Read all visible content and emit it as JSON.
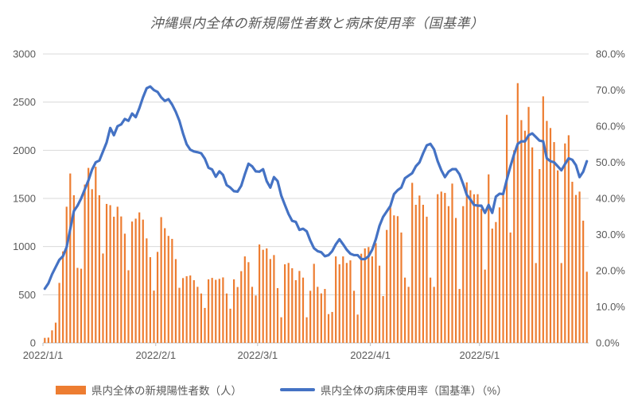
{
  "title": "沖縄県内全体の新規陽性者数と病床使用率（国基準）",
  "colors": {
    "bar": "#ED7D31",
    "line": "#4472C4",
    "grid": "#D9D9D9",
    "axis_line": "#BFBFBF",
    "axis_text": "#595959",
    "title_text": "#595959"
  },
  "chart_data": {
    "type": "combo_bar_line",
    "title": "沖縄県内全体の新規陽性者数と病床使用率（国基準）",
    "grid": true,
    "legend_position": "bottom",
    "x_unit": "day",
    "x_start": "2022/1/1",
    "x_end": "2022/5/30",
    "x_ticks": [
      {
        "label": "2022/1/1",
        "day_offset": 0
      },
      {
        "label": "2022/2/1",
        "day_offset": 31
      },
      {
        "label": "2022/3/1",
        "day_offset": 59
      },
      {
        "label": "2022/4/1",
        "day_offset": 90
      },
      {
        "label": "2022/5/1",
        "day_offset": 120
      }
    ],
    "left_axis": {
      "min": 0,
      "max": 3000,
      "step": 500,
      "tick_labels": [
        "0",
        "500",
        "1000",
        "1500",
        "2000",
        "2500",
        "3000"
      ]
    },
    "right_axis": {
      "min": 0,
      "max": 80,
      "step": 10,
      "tick_labels": [
        "0.0%",
        "10.0%",
        "20.0%",
        "30.0%",
        "40.0%",
        "50.0%",
        "60.0%",
        "70.0%",
        "80.0%"
      ]
    },
    "dates": [
      "2022/1/1",
      "2022/1/2",
      "2022/1/3",
      "2022/1/4",
      "2022/1/5",
      "2022/1/6",
      "2022/1/7",
      "2022/1/8",
      "2022/1/9",
      "2022/1/10",
      "2022/1/11",
      "2022/1/12",
      "2022/1/13",
      "2022/1/14",
      "2022/1/15",
      "2022/1/16",
      "2022/1/17",
      "2022/1/18",
      "2022/1/19",
      "2022/1/20",
      "2022/1/21",
      "2022/1/22",
      "2022/1/23",
      "2022/1/24",
      "2022/1/25",
      "2022/1/26",
      "2022/1/27",
      "2022/1/28",
      "2022/1/29",
      "2022/1/30",
      "2022/1/31",
      "2022/2/1",
      "2022/2/2",
      "2022/2/3",
      "2022/2/4",
      "2022/2/5",
      "2022/2/6",
      "2022/2/7",
      "2022/2/8",
      "2022/2/9",
      "2022/2/10",
      "2022/2/11",
      "2022/2/12",
      "2022/2/13",
      "2022/2/14",
      "2022/2/15",
      "2022/2/16",
      "2022/2/17",
      "2022/2/18",
      "2022/2/19",
      "2022/2/20",
      "2022/2/21",
      "2022/2/22",
      "2022/2/23",
      "2022/2/24",
      "2022/2/25",
      "2022/2/26",
      "2022/2/27",
      "2022/2/28",
      "2022/3/1",
      "2022/3/2",
      "2022/3/3",
      "2022/3/4",
      "2022/3/5",
      "2022/3/6",
      "2022/3/7",
      "2022/3/8",
      "2022/3/9",
      "2022/3/10",
      "2022/3/11",
      "2022/3/12",
      "2022/3/13",
      "2022/3/14",
      "2022/3/15",
      "2022/3/16",
      "2022/3/17",
      "2022/3/18",
      "2022/3/19",
      "2022/3/20",
      "2022/3/21",
      "2022/3/22",
      "2022/3/23",
      "2022/3/24",
      "2022/3/25",
      "2022/3/26",
      "2022/3/27",
      "2022/3/28",
      "2022/3/29",
      "2022/3/30",
      "2022/3/31",
      "2022/4/1",
      "2022/4/2",
      "2022/4/3",
      "2022/4/4",
      "2022/4/5",
      "2022/4/6",
      "2022/4/7",
      "2022/4/8",
      "2022/4/9",
      "2022/4/10",
      "2022/4/11",
      "2022/4/12",
      "2022/4/13",
      "2022/4/14",
      "2022/4/15",
      "2022/4/16",
      "2022/4/17",
      "2022/4/18",
      "2022/4/19",
      "2022/4/20",
      "2022/4/21",
      "2022/4/22",
      "2022/4/23",
      "2022/4/24",
      "2022/4/25",
      "2022/4/26",
      "2022/4/27",
      "2022/4/28",
      "2022/4/29",
      "2022/4/30",
      "2022/5/1",
      "2022/5/2",
      "2022/5/3",
      "2022/5/4",
      "2022/5/5",
      "2022/5/6",
      "2022/5/7",
      "2022/5/8",
      "2022/5/9",
      "2022/5/10",
      "2022/5/11",
      "2022/5/12",
      "2022/5/13",
      "2022/5/14",
      "2022/5/15",
      "2022/5/16",
      "2022/5/17",
      "2022/5/18",
      "2022/5/19",
      "2022/5/20",
      "2022/5/21",
      "2022/5/22",
      "2022/5/23",
      "2022/5/24",
      "2022/5/25",
      "2022/5/26",
      "2022/5/27",
      "2022/5/28",
      "2022/5/29",
      "2022/5/30"
    ],
    "series": [
      {
        "name": "県内全体の新規陽性者数（人）",
        "type": "bar",
        "axis": "left",
        "color": "#ED7D31",
        "values": [
          52,
          55,
          130,
          210,
          623,
          950,
          1414,
          1759,
          1533,
          779,
          770,
          1644,
          1817,
          1596,
          1829,
          1533,
          928,
          1443,
          1430,
          1310,
          1414,
          1313,
          1134,
          754,
          1260,
          1290,
          1355,
          1280,
          1085,
          890,
          543,
          945,
          1306,
          1191,
          1111,
          1080,
          870,
          572,
          673,
          692,
          700,
          651,
          582,
          513,
          363,
          660,
          675,
          655,
          665,
          680,
          513,
          355,
          660,
          580,
          745,
          898,
          838,
          582,
          492,
          1022,
          967,
          981,
          871,
          912,
          569,
          266,
          816,
          830,
          775,
          651,
          747,
          678,
          266,
          541,
          821,
          582,
          514,
          560,
          299,
          321,
          898,
          816,
          898,
          830,
          857,
          541,
          294,
          926,
          981,
          995,
          898,
          1036,
          802,
          486,
          1173,
          1407,
          1324,
          1316,
          1146,
          678,
          582,
          1662,
          1434,
          1530,
          1434,
          1310,
          678,
          582,
          1544,
          1571,
          1557,
          1420,
          1654,
          1297,
          560,
          1420,
          1667,
          1585,
          1543,
          1544,
          1393,
          761,
          1750,
          1187,
          1255,
          1407,
          1544,
          2368,
          1146,
          2000,
          2697,
          2313,
          2203,
          2450,
          2030,
          829,
          1805,
          2560,
          2305,
          2231,
          2085,
          1791,
          829,
          2071,
          2156,
          1673,
          1536,
          1571,
          1269,
          739
        ]
      },
      {
        "name": "県内全体の病床使用率（国基準）（%）",
        "type": "line",
        "axis": "right",
        "color": "#4472C4",
        "values": [
          15.0,
          16.5,
          19.0,
          21.0,
          23.0,
          24.0,
          26.5,
          31.5,
          36.5,
          38.0,
          40.0,
          42.5,
          45.0,
          48.0,
          50.0,
          50.5,
          53.0,
          55.5,
          59.5,
          57.5,
          60.0,
          60.5,
          62.0,
          61.5,
          63.5,
          62.5,
          65.0,
          68.0,
          70.5,
          71.0,
          70.0,
          69.5,
          68.0,
          67.0,
          67.5,
          66.0,
          64.0,
          61.5,
          58.0,
          55.0,
          53.5,
          53.0,
          52.8,
          52.5,
          51.0,
          48.5,
          48.0,
          46.0,
          47.5,
          46.5,
          43.7,
          43.0,
          42.0,
          41.9,
          43.5,
          46.7,
          49.6,
          48.9,
          47.5,
          47.4,
          48.1,
          44.8,
          43.0,
          45.9,
          44.8,
          40.8,
          38.2,
          35.7,
          33.8,
          33.5,
          31.3,
          31.6,
          30.9,
          28.3,
          26.2,
          25.4,
          25.1,
          24.0,
          24.3,
          25.4,
          27.3,
          28.7,
          27.3,
          25.8,
          24.7,
          24.3,
          24.3,
          23.2,
          23.2,
          24.0,
          25.8,
          28.7,
          32.4,
          34.9,
          36.4,
          37.9,
          41.2,
          42.3,
          43.0,
          45.6,
          46.3,
          47.0,
          48.9,
          50.0,
          52.5,
          54.7,
          55.1,
          53.6,
          50.3,
          47.8,
          45.9,
          47.4,
          48.1,
          48.1,
          46.7,
          44.0,
          41.0,
          39.7,
          38.2,
          38.0,
          38.0,
          36.0,
          38.2,
          36.0,
          40.5,
          41.3,
          41.2,
          45.2,
          48.9,
          52.2,
          55.1,
          55.8,
          55.8,
          57.5,
          58.0,
          57.0,
          56.0,
          55.8,
          51.1,
          50.3,
          50.0,
          48.9,
          47.8,
          49.5,
          51.1,
          50.7,
          49.2,
          45.9,
          47.4,
          50.3
        ]
      }
    ]
  }
}
